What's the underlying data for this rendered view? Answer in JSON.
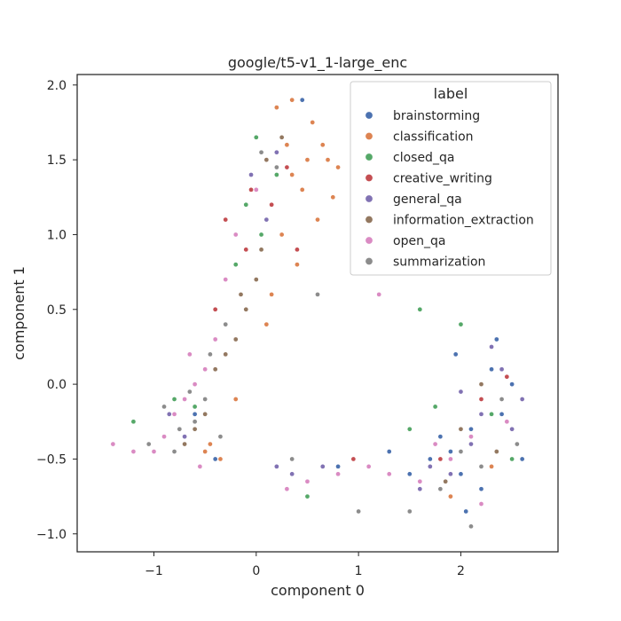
{
  "chart_data": {
    "type": "scatter",
    "title": "google/t5-v1_1-large_enc",
    "xlabel": "component 0",
    "ylabel": "component 1",
    "xlim": [
      -1.75,
      2.95
    ],
    "ylim": [
      -1.12,
      2.07
    ],
    "xticks": [
      "−1",
      "0",
      "1",
      "2"
    ],
    "xtick_values": [
      -1,
      0,
      1,
      2
    ],
    "yticks": [
      "−1.0",
      "−0.5",
      "0.0",
      "0.5",
      "1.0",
      "1.5",
      "2.0"
    ],
    "ytick_values": [
      -1.0,
      -0.5,
      0.0,
      0.5,
      1.0,
      1.5,
      2.0
    ],
    "grid": false,
    "legend": {
      "title": "label",
      "placement": "top-right"
    },
    "series": [
      {
        "name": "brainstorming",
        "color": "#4c72b0",
        "points": [
          [
            1.9,
            -0.45
          ],
          [
            2.1,
            -0.3
          ],
          [
            2.3,
            0.1
          ],
          [
            2.0,
            -0.6
          ],
          [
            1.7,
            -0.5
          ],
          [
            2.4,
            -0.2
          ],
          [
            0.45,
            1.9
          ],
          [
            -0.6,
            -0.2
          ],
          [
            2.2,
            -0.7
          ],
          [
            1.8,
            -0.35
          ],
          [
            2.5,
            0.0
          ],
          [
            1.5,
            -0.6
          ],
          [
            2.6,
            -0.5
          ],
          [
            0.8,
            -0.55
          ],
          [
            -0.4,
            -0.5
          ],
          [
            2.05,
            -0.85
          ],
          [
            1.3,
            -0.45
          ],
          [
            2.35,
            0.3
          ],
          [
            -0.75,
            -0.3
          ],
          [
            1.95,
            0.2
          ]
        ]
      },
      {
        "name": "classification",
        "color": "#dd8452",
        "points": [
          [
            0.35,
            1.9
          ],
          [
            0.55,
            1.75
          ],
          [
            0.7,
            1.5
          ],
          [
            0.8,
            1.45
          ],
          [
            0.3,
            1.6
          ],
          [
            0.45,
            1.3
          ],
          [
            0.6,
            1.1
          ],
          [
            0.25,
            1.0
          ],
          [
            -0.45,
            -0.4
          ],
          [
            -0.35,
            -0.5
          ],
          [
            -0.5,
            -0.45
          ],
          [
            0.15,
            0.6
          ],
          [
            0.4,
            0.8
          ],
          [
            0.65,
            1.6
          ],
          [
            0.2,
            1.85
          ],
          [
            -0.3,
            0.2
          ],
          [
            2.3,
            -0.55
          ],
          [
            1.9,
            -0.75
          ],
          [
            0.5,
            1.5
          ],
          [
            0.35,
            1.4
          ],
          [
            0.1,
            0.4
          ],
          [
            -0.2,
            -0.1
          ],
          [
            0.6,
            0.6
          ],
          [
            0.75,
            1.25
          ]
        ]
      },
      {
        "name": "closed_qa",
        "color": "#55a868",
        "points": [
          [
            0.0,
            1.65
          ],
          [
            0.2,
            1.4
          ],
          [
            -0.1,
            1.2
          ],
          [
            -0.2,
            0.8
          ],
          [
            1.6,
            0.5
          ],
          [
            2.0,
            0.4
          ],
          [
            1.5,
            -0.3
          ],
          [
            2.3,
            -0.2
          ],
          [
            -0.6,
            -0.15
          ],
          [
            -0.8,
            -0.1
          ],
          [
            -1.4,
            -0.4
          ],
          [
            -1.2,
            -0.25
          ],
          [
            0.5,
            -0.75
          ],
          [
            2.5,
            -0.5
          ],
          [
            1.75,
            -0.15
          ],
          [
            0.05,
            1.0
          ]
        ]
      },
      {
        "name": "creative_writing",
        "color": "#c44e52",
        "points": [
          [
            0.1,
            1.5
          ],
          [
            -0.05,
            1.3
          ],
          [
            0.15,
            1.2
          ],
          [
            -0.3,
            1.1
          ],
          [
            -0.1,
            0.9
          ],
          [
            0.3,
            1.45
          ],
          [
            1.8,
            -0.5
          ],
          [
            2.2,
            -0.1
          ],
          [
            0.95,
            -0.5
          ],
          [
            0.4,
            0.9
          ],
          [
            -0.4,
            0.5
          ],
          [
            2.45,
            0.05
          ]
        ]
      },
      {
        "name": "general_qa",
        "color": "#8172b3",
        "points": [
          [
            2.1,
            -0.4
          ],
          [
            2.2,
            -0.2
          ],
          [
            1.9,
            -0.6
          ],
          [
            2.4,
            0.1
          ],
          [
            2.5,
            -0.3
          ],
          [
            1.7,
            -0.55
          ],
          [
            0.35,
            -0.6
          ],
          [
            0.2,
            -0.55
          ],
          [
            -0.7,
            -0.35
          ],
          [
            -0.85,
            -0.2
          ],
          [
            0.1,
            1.1
          ],
          [
            -0.05,
            1.4
          ],
          [
            0.2,
            1.55
          ],
          [
            2.0,
            -0.05
          ],
          [
            2.3,
            0.25
          ],
          [
            1.6,
            -0.7
          ],
          [
            0.65,
            -0.55
          ],
          [
            2.6,
            -0.1
          ]
        ]
      },
      {
        "name": "information_extraction",
        "color": "#937860",
        "points": [
          [
            -0.2,
            0.3
          ],
          [
            -0.3,
            0.2
          ],
          [
            -0.1,
            0.5
          ],
          [
            0.0,
            0.7
          ],
          [
            -0.6,
            -0.3
          ],
          [
            -0.7,
            -0.4
          ],
          [
            -0.5,
            -0.2
          ],
          [
            0.1,
            1.5
          ],
          [
            0.25,
            1.65
          ],
          [
            2.0,
            -0.3
          ],
          [
            2.2,
            0.0
          ],
          [
            -0.4,
            0.1
          ],
          [
            0.05,
            0.9
          ],
          [
            -0.15,
            0.6
          ],
          [
            1.85,
            -0.65
          ],
          [
            2.35,
            -0.45
          ]
        ]
      },
      {
        "name": "open_qa",
        "color": "#da8bc3",
        "points": [
          [
            -0.7,
            -0.1
          ],
          [
            -0.8,
            -0.2
          ],
          [
            -0.9,
            -0.35
          ],
          [
            -0.6,
            0.0
          ],
          [
            -0.5,
            0.1
          ],
          [
            -0.4,
            0.3
          ],
          [
            -1.0,
            -0.45
          ],
          [
            -1.2,
            -0.45
          ],
          [
            -1.4,
            -0.4
          ],
          [
            1.2,
            0.6
          ],
          [
            1.9,
            -0.5
          ],
          [
            2.1,
            -0.35
          ],
          [
            1.6,
            -0.65
          ],
          [
            1.3,
            -0.6
          ],
          [
            0.8,
            -0.6
          ],
          [
            0.5,
            -0.65
          ],
          [
            -0.2,
            1.0
          ],
          [
            0.0,
            1.3
          ],
          [
            -0.3,
            0.7
          ],
          [
            2.2,
            -0.8
          ],
          [
            1.75,
            -0.4
          ],
          [
            -0.55,
            -0.55
          ],
          [
            -0.65,
            0.2
          ],
          [
            2.45,
            -0.25
          ],
          [
            1.1,
            -0.55
          ],
          [
            0.3,
            -0.7
          ]
        ]
      },
      {
        "name": "summarization",
        "color": "#8c8c8c",
        "points": [
          [
            -0.6,
            -0.25
          ],
          [
            -0.75,
            -0.3
          ],
          [
            -0.8,
            -0.45
          ],
          [
            -0.5,
            -0.1
          ],
          [
            -0.65,
            -0.05
          ],
          [
            -0.45,
            0.2
          ],
          [
            -0.3,
            0.4
          ],
          [
            0.6,
            0.6
          ],
          [
            0.05,
            1.55
          ],
          [
            0.2,
            1.45
          ],
          [
            2.0,
            -0.45
          ],
          [
            2.2,
            -0.55
          ],
          [
            1.8,
            -0.7
          ],
          [
            2.4,
            -0.1
          ],
          [
            1.5,
            -0.85
          ],
          [
            -1.05,
            -0.4
          ],
          [
            -0.9,
            -0.15
          ],
          [
            2.1,
            -0.95
          ],
          [
            1.0,
            -0.85
          ],
          [
            -0.35,
            -0.35
          ],
          [
            2.55,
            -0.4
          ],
          [
            0.35,
            -0.5
          ]
        ]
      }
    ]
  }
}
